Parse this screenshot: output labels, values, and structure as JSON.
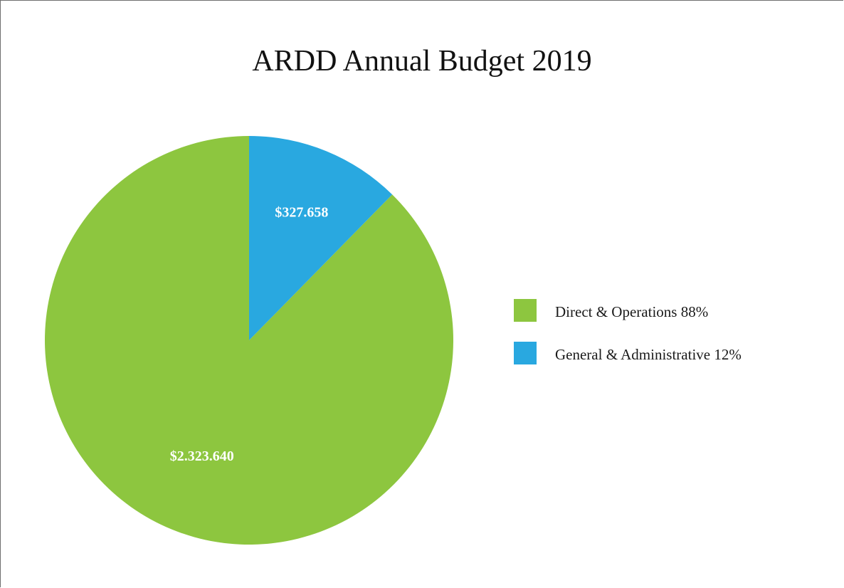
{
  "chart_data": {
    "type": "pie",
    "title": "ARDD Annual Budget 2019",
    "slices": [
      {
        "name": "Direct & Operations 88%",
        "value": 2323640,
        "label": "$2.323.640",
        "color": "#8dc63f"
      },
      {
        "name": "General & Administrative 12%",
        "value": 327658,
        "label": "$327.658",
        "color": "#29a8e0"
      }
    ],
    "legend_placement": "right"
  }
}
